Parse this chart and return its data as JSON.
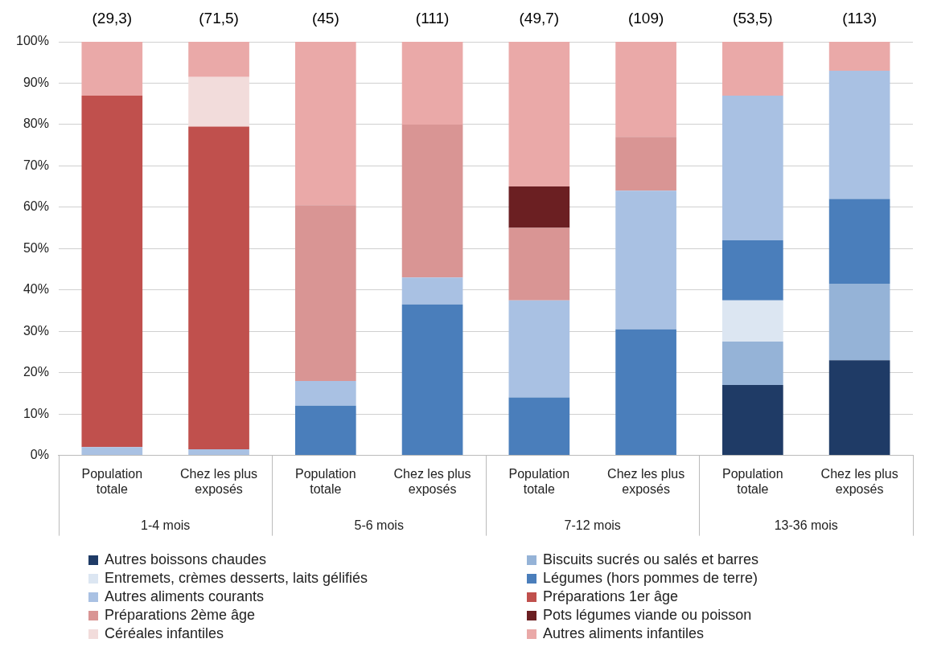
{
  "chart_data": {
    "type": "bar",
    "stacked": true,
    "categories": [
      "Population totale",
      "Chez les plus exposés",
      "Population totale",
      "Chez les plus exposés",
      "Population totale",
      "Chez les plus exposés",
      "Population totale",
      "Chez les plus exposés"
    ],
    "series": [
      {
        "name": "Autres boissons chaudes",
        "color": "#1f3b66",
        "values": [
          0,
          0,
          0,
          0,
          0,
          0,
          17,
          23
        ]
      },
      {
        "name": "Biscuits sucrés ou salés et barres",
        "color": "#95b3d7",
        "values": [
          0,
          0,
          0,
          0,
          0,
          0,
          10.5,
          18.5
        ]
      },
      {
        "name": "Entremets, crèmes desserts, laits gélifiés",
        "color": "#dce6f2",
        "values": [
          0,
          0,
          0,
          0,
          0,
          0,
          10,
          0
        ]
      },
      {
        "name": "Légumes (hors pommes de terre)",
        "color": "#4a7ebb",
        "values": [
          0,
          0,
          12,
          36.5,
          14,
          30.5,
          14.5,
          20.5
        ]
      },
      {
        "name": "Autres aliments courants",
        "color": "#a9c1e3",
        "values": [
          2,
          1.5,
          6,
          6.5,
          23.5,
          33.5,
          35,
          31
        ]
      },
      {
        "name": "Préparations 1er âge",
        "color": "#c0504d",
        "values": [
          85,
          78,
          0,
          0,
          0,
          0,
          0,
          0
        ]
      },
      {
        "name": "Préparations 2ème âge",
        "color": "#d99594",
        "values": [
          0,
          0,
          42.5,
          37,
          17.5,
          13,
          0,
          0
        ]
      },
      {
        "name": "Pots légumes viande ou poisson",
        "color": "#6b1f22",
        "values": [
          0,
          0,
          0,
          0,
          10,
          0,
          0,
          0
        ]
      },
      {
        "name": "Céréales infantiles",
        "color": "#f2dcdb",
        "values": [
          0,
          12,
          0,
          0,
          0,
          0,
          0,
          0
        ]
      },
      {
        "name": "Autres aliments infantiles",
        "color": "#eaa9a8",
        "values": [
          13,
          8.5,
          39.5,
          20,
          35,
          23,
          13,
          7
        ]
      }
    ],
    "ylim": [
      0,
      100
    ],
    "yticks": [
      {
        "value": 0,
        "label": "0%"
      },
      {
        "value": 10,
        "label": "10%"
      },
      {
        "value": 20,
        "label": "20%"
      },
      {
        "value": 30,
        "label": "30%"
      },
      {
        "value": 40,
        "label": "40%"
      },
      {
        "value": 50,
        "label": "50%"
      },
      {
        "value": 60,
        "label": "60%"
      },
      {
        "value": 70,
        "label": "70%"
      },
      {
        "value": 80,
        "label": "80%"
      },
      {
        "value": 90,
        "label": "90%"
      },
      {
        "value": 100,
        "label": "100%"
      }
    ],
    "annotations": [
      "(29,3)",
      "(71,5)",
      "(45)",
      "(111)",
      "(49,7)",
      "(109)",
      "(53,5)",
      "(113)",
      "1-4 mois",
      "5-6 mois",
      "7-12 mois",
      "13-36 mois"
    ],
    "grid": "y",
    "legend": "bottom"
  }
}
